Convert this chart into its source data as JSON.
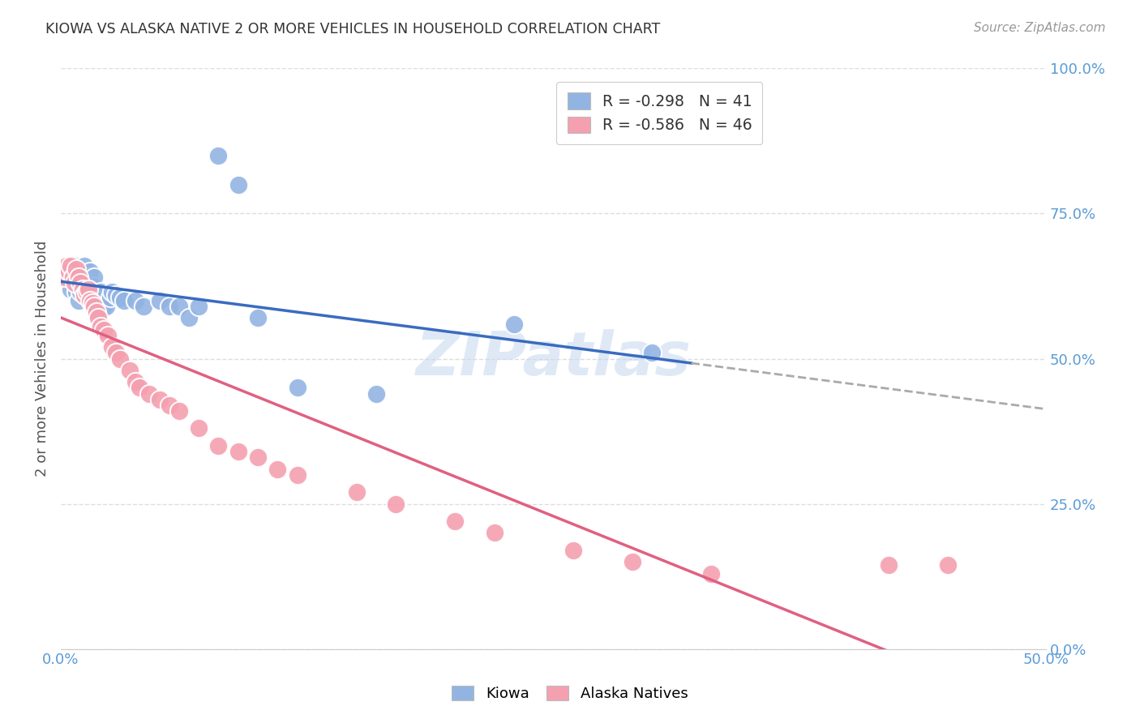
{
  "title": "KIOWA VS ALASKA NATIVE 2 OR MORE VEHICLES IN HOUSEHOLD CORRELATION CHART",
  "source": "Source: ZipAtlas.com",
  "ylabel": "2 or more Vehicles in Household",
  "ylabel_right_labels": [
    "0.0%",
    "25.0%",
    "50.0%",
    "75.0%",
    "100.0%"
  ],
  "ylabel_right_values": [
    0.0,
    0.25,
    0.5,
    0.75,
    1.0
  ],
  "xlim": [
    0.0,
    0.5
  ],
  "ylim": [
    0.0,
    1.0
  ],
  "kiowa_color": "#92b4e3",
  "alaska_color": "#f4a0b0",
  "kiowa_line_color": "#3a6bbf",
  "alaska_line_color": "#e06080",
  "kiowa_dash_color": "#aaaaaa",
  "kiowa_R": -0.298,
  "kiowa_N": 41,
  "alaska_R": -0.586,
  "alaska_N": 46,
  "watermark": "ZIPatlas",
  "kiowa_x": [
    0.002,
    0.004,
    0.005,
    0.006,
    0.007,
    0.008,
    0.009,
    0.01,
    0.01,
    0.011,
    0.012,
    0.012,
    0.013,
    0.014,
    0.015,
    0.016,
    0.017,
    0.018,
    0.019,
    0.02,
    0.022,
    0.023,
    0.025,
    0.026,
    0.028,
    0.03,
    0.032,
    0.038,
    0.042,
    0.05,
    0.055,
    0.06,
    0.065,
    0.07,
    0.08,
    0.09,
    0.1,
    0.12,
    0.16,
    0.23,
    0.3
  ],
  "kiowa_y": [
    0.64,
    0.66,
    0.62,
    0.64,
    0.66,
    0.615,
    0.6,
    0.615,
    0.64,
    0.625,
    0.66,
    0.62,
    0.64,
    0.63,
    0.65,
    0.625,
    0.64,
    0.61,
    0.6,
    0.615,
    0.59,
    0.59,
    0.605,
    0.615,
    0.61,
    0.605,
    0.6,
    0.6,
    0.59,
    0.6,
    0.59,
    0.59,
    0.57,
    0.59,
    0.85,
    0.8,
    0.57,
    0.45,
    0.44,
    0.56,
    0.51
  ],
  "alaska_x": [
    0.002,
    0.003,
    0.004,
    0.005,
    0.006,
    0.007,
    0.008,
    0.009,
    0.01,
    0.011,
    0.012,
    0.013,
    0.014,
    0.015,
    0.016,
    0.017,
    0.018,
    0.019,
    0.02,
    0.022,
    0.024,
    0.026,
    0.028,
    0.03,
    0.035,
    0.038,
    0.04,
    0.045,
    0.05,
    0.055,
    0.06,
    0.07,
    0.08,
    0.09,
    0.1,
    0.11,
    0.12,
    0.15,
    0.17,
    0.2,
    0.22,
    0.26,
    0.29,
    0.33,
    0.42,
    0.45
  ],
  "alaska_y": [
    0.64,
    0.66,
    0.65,
    0.66,
    0.64,
    0.63,
    0.655,
    0.64,
    0.63,
    0.62,
    0.61,
    0.615,
    0.62,
    0.6,
    0.595,
    0.59,
    0.58,
    0.57,
    0.555,
    0.55,
    0.54,
    0.52,
    0.51,
    0.5,
    0.48,
    0.46,
    0.45,
    0.44,
    0.43,
    0.42,
    0.41,
    0.38,
    0.35,
    0.34,
    0.33,
    0.31,
    0.3,
    0.27,
    0.25,
    0.22,
    0.2,
    0.17,
    0.15,
    0.13,
    0.145,
    0.145
  ],
  "background_color": "#ffffff",
  "grid_color": "#dddddd",
  "title_color": "#333333",
  "tick_label_color": "#5b9bd5"
}
